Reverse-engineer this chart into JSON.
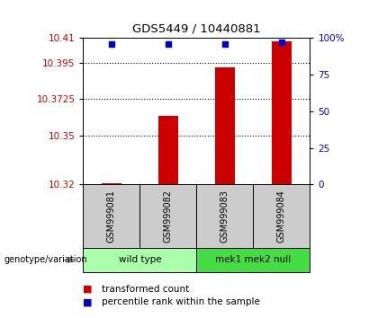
{
  "title": "GDS5449 / 10440881",
  "samples": [
    "GSM999081",
    "GSM999082",
    "GSM999083",
    "GSM999084"
  ],
  "bar_values": [
    10.321,
    10.362,
    10.392,
    10.408
  ],
  "percentile_values": [
    96,
    96,
    96,
    97
  ],
  "ymin": 10.32,
  "ymax": 10.41,
  "yticks": [
    10.32,
    10.35,
    10.3725,
    10.395,
    10.41
  ],
  "ytick_labels": [
    "10.32",
    "10.35",
    "10.3725",
    "10.395",
    "10.41"
  ],
  "right_yticks": [
    0,
    25,
    50,
    75,
    100
  ],
  "right_ytick_labels": [
    "0",
    "25",
    "50",
    "75",
    "100%"
  ],
  "bar_color": "#cc0000",
  "percentile_color": "#0000cc",
  "groups": [
    {
      "label": "wild type",
      "samples": [
        0,
        1
      ],
      "color": "#aaffaa"
    },
    {
      "label": "mek1 mek2 null",
      "samples": [
        2,
        3
      ],
      "color": "#44dd44"
    }
  ],
  "group_label": "genotype/variation",
  "legend_bar_label": "transformed count",
  "legend_pct_label": "percentile rank within the sample",
  "bg_color": "#ffffff",
  "bar_color_hex": "#cc0000",
  "percentile_color_hex": "#0000cc",
  "sample_box_color": "#cccccc",
  "bar_width": 0.35,
  "grid_ticks": [
    10.395,
    10.3725,
    10.35
  ]
}
